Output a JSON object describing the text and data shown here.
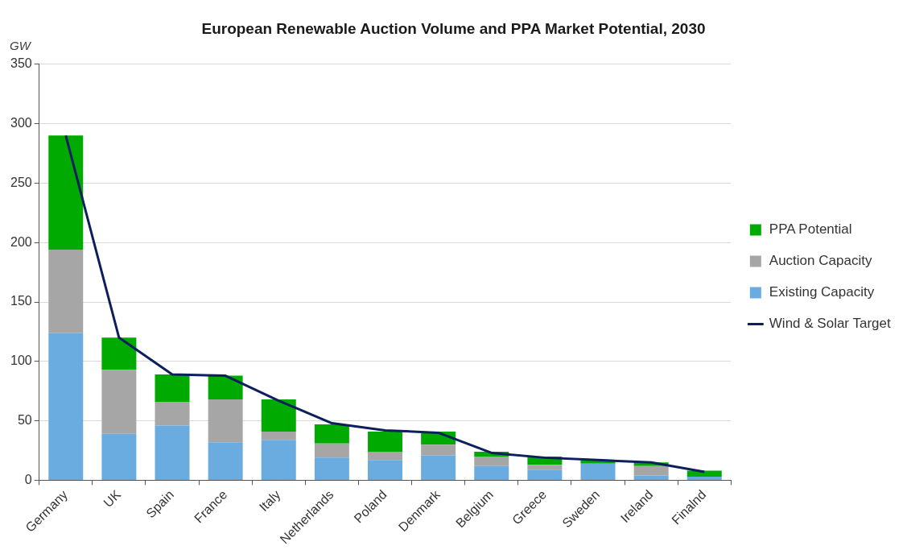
{
  "chart_data": {
    "type": "bar",
    "title": "European Renewable Auction Volume and PPA Market Potential, 2030",
    "ylabel": "GW",
    "categories": [
      "Germany",
      "UK",
      "Spain",
      "France",
      "Italy",
      "Netherlands",
      "Poland",
      "Denmark",
      "Belgium",
      "Greece",
      "Sweden",
      "Ireland",
      "Finalnd"
    ],
    "stacked": true,
    "series": [
      {
        "name": "Existing Capacity",
        "color": "#6aace0",
        "values": [
          124,
          39,
          46,
          32,
          34,
          19,
          17,
          21,
          12,
          9,
          14,
          4,
          3
        ]
      },
      {
        "name": "Auction Capacity",
        "color": "#a6a6a6",
        "values": [
          70,
          54,
          20,
          36,
          7,
          12,
          7,
          9,
          8,
          4,
          0,
          8,
          0
        ]
      },
      {
        "name": "PPA Potential",
        "color": "#00aa00",
        "values": [
          96,
          27,
          23,
          20,
          27,
          16,
          17,
          11,
          4,
          7,
          3,
          3,
          5
        ]
      },
      {
        "name": "Wind & Solar Target",
        "type": "line",
        "color": "#0d1f5c",
        "values": [
          290,
          120,
          89,
          88,
          67,
          48,
          42,
          40,
          23,
          19,
          17,
          15,
          7
        ]
      }
    ],
    "ylim": [
      0,
      350
    ],
    "yticks": [
      0,
      50,
      100,
      150,
      200,
      250,
      300,
      350
    ],
    "grid": "y",
    "legend": "right",
    "marker": "none"
  }
}
